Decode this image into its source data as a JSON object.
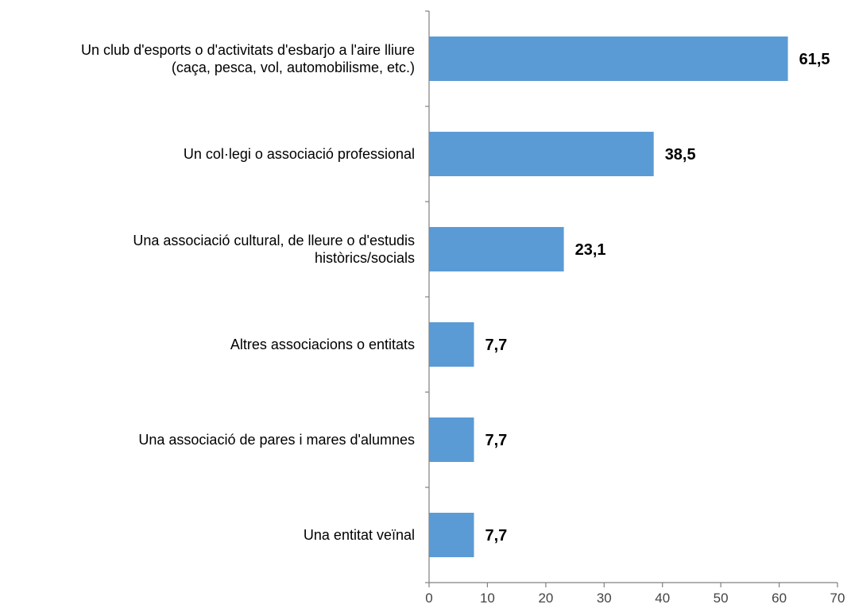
{
  "chart_data": {
    "type": "bar",
    "orientation": "horizontal",
    "title": "",
    "xlabel": "",
    "ylabel": "",
    "xlim": [
      0,
      70
    ],
    "x_ticks": [
      0,
      10,
      20,
      30,
      40,
      50,
      60,
      70
    ],
    "x_tick_labels": [
      "0",
      "10",
      "20",
      "30",
      "40",
      "50",
      "60",
      "70"
    ],
    "grid": false,
    "legend": "none",
    "bar_color": "#5b9bd5",
    "categories": [
      "Un club d'esports o d'activitats d'esbarjo a l'aire lliure (caça, pesca, vol, automobilisme, etc.)",
      "Un col·legi o associació professional",
      "Una associació cultural, de lleure o d'estudis històrics/socials",
      "Altres associacions o entitats",
      "Una associació de pares i mares d'alumnes",
      "Una entitat veïnal"
    ],
    "category_label_lines": [
      [
        "Un club d'esports o d'activitats d'esbarjo a l'aire lliure",
        "(caça, pesca, vol, automobilisme, etc.)"
      ],
      [
        "Un col·legi o associació professional"
      ],
      [
        "Una associació cultural, de lleure o d'estudis",
        "històrics/socials"
      ],
      [
        "Altres associacions o entitats"
      ],
      [
        "Una associació de pares i mares d'alumnes"
      ],
      [
        "Una entitat veïnal"
      ]
    ],
    "values": [
      61.5,
      38.5,
      23.1,
      7.7,
      7.7,
      7.7
    ],
    "value_labels": [
      "61,5",
      "38,5",
      "23,1",
      "7,7",
      "7,7",
      "7,7"
    ]
  }
}
